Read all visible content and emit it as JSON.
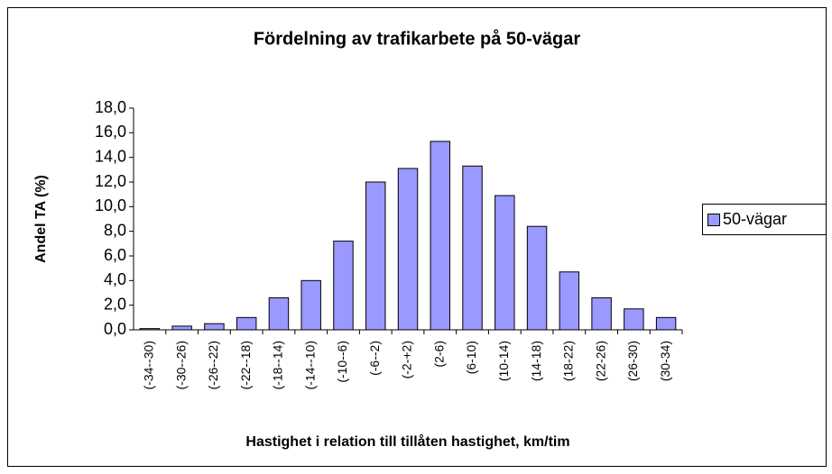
{
  "chart_data": {
    "type": "bar",
    "title": "Fördelning av trafikarbete på 50-vägar",
    "x_label": "Hastighet i relation till tillåten hastighet, km/tim",
    "y_label": "Andel TA (%)",
    "categories": [
      "(-34--30)",
      "(-30--26)",
      "(-26--22)",
      "(-22--18)",
      "(-18--14)",
      "(-14--10)",
      "(-10--6)",
      "(-6--2)",
      "(-2-+2)",
      "(2-6)",
      "(6-10)",
      "(10-14)",
      "(14-18)",
      "(18-22)",
      "(22-26)",
      "(26-30)",
      "(30-34)"
    ],
    "series": [
      {
        "name": "50-vägar",
        "color": "#9999ff",
        "values": [
          0.1,
          0.3,
          0.5,
          1.0,
          2.6,
          4.0,
          7.2,
          12.0,
          13.1,
          15.3,
          13.3,
          10.9,
          8.4,
          4.7,
          2.6,
          1.7,
          1.0
        ]
      }
    ],
    "ylim": [
      0,
      18
    ],
    "yticks": [
      {
        "value": 0,
        "label": "0,0"
      },
      {
        "value": 2,
        "label": "2,0"
      },
      {
        "value": 4,
        "label": "4,0"
      },
      {
        "value": 6,
        "label": "6,0"
      },
      {
        "value": 8,
        "label": "8,0"
      },
      {
        "value": 10,
        "label": "10,0"
      },
      {
        "value": 12,
        "label": "12,0"
      },
      {
        "value": 14,
        "label": "14,0"
      },
      {
        "value": 16,
        "label": "16,0"
      },
      {
        "value": 18,
        "label": "18,0"
      }
    ],
    "grid": false,
    "legend": "right"
  }
}
